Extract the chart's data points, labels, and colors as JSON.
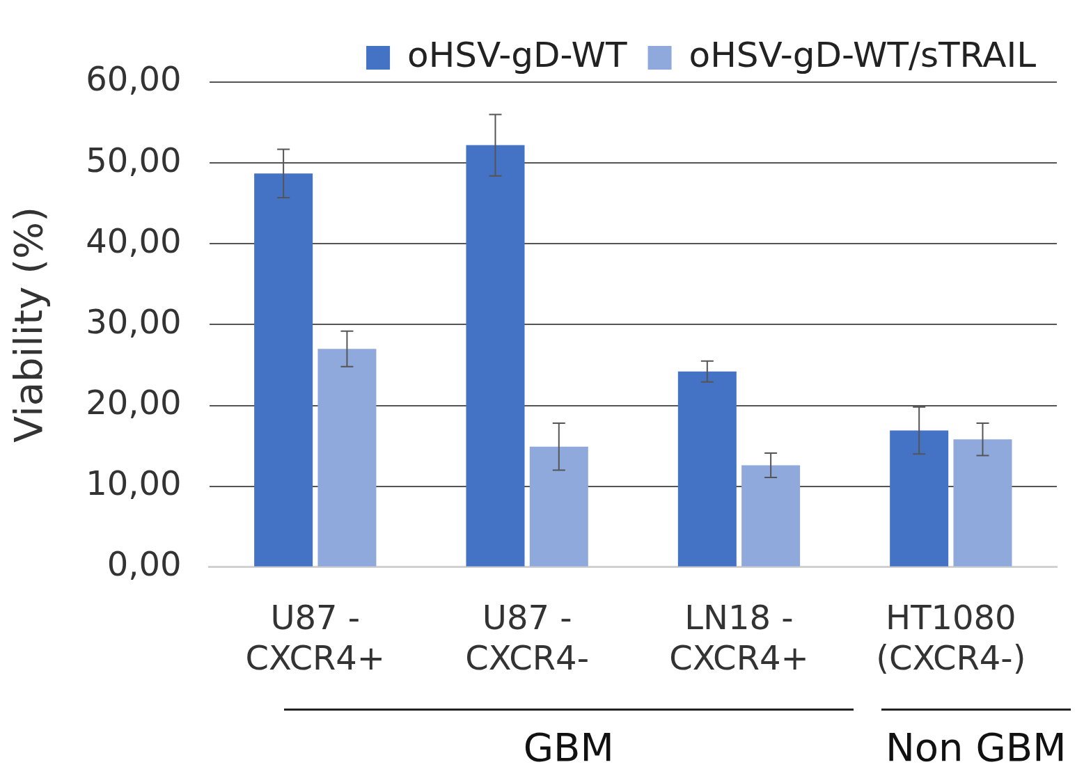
{
  "chart_data": {
    "type": "bar",
    "ylabel": "Viability (%)",
    "categories": [
      "U87 -\nCXCR4+",
      "U87 -\nCXCR4-",
      "LN18 -\nCXCR4+",
      "HT1080\n(CXCR4-)"
    ],
    "series": [
      {
        "name": "oHSV-gD-WT",
        "color": "#4472c4",
        "values": [
          48.7,
          52.2,
          24.2,
          16.9
        ],
        "errors": [
          3.0,
          3.8,
          1.3,
          2.9
        ]
      },
      {
        "name": "oHSV-gD-WT/sTRAIL",
        "color": "#8fa9dc",
        "values": [
          27.0,
          14.9,
          12.6,
          15.8
        ],
        "errors": [
          2.2,
          2.9,
          1.5,
          2.0
        ]
      }
    ],
    "ylim": [
      0,
      60
    ],
    "yticks": [
      {
        "value": 0,
        "label": "0,00"
      },
      {
        "value": 10,
        "label": "10,00"
      },
      {
        "value": 20,
        "label": "20,00"
      },
      {
        "value": 30,
        "label": "30,00"
      },
      {
        "value": 40,
        "label": "40,00"
      },
      {
        "value": 50,
        "label": "50,00"
      },
      {
        "value": 60,
        "label": "60,00"
      }
    ],
    "grid": "y",
    "legend": "top right",
    "annotations": [
      "GBM",
      "Non GBM"
    ]
  }
}
